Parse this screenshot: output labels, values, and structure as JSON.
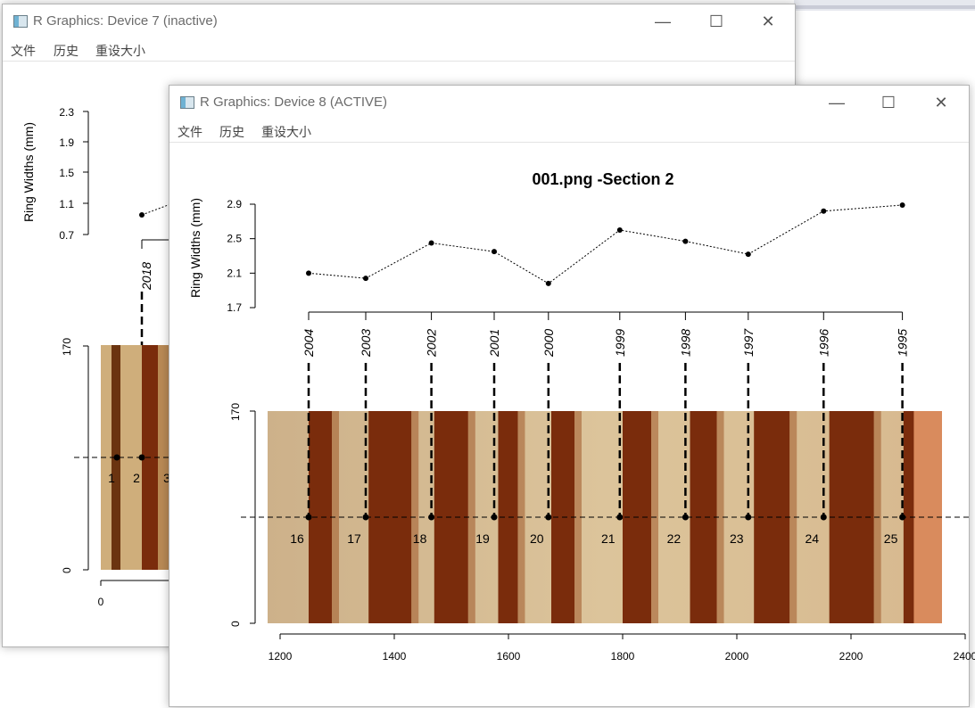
{
  "window_inactive": {
    "title": "R Graphics: Device 7 (inactive)",
    "menu": [
      "文件",
      "历史",
      "重设大小"
    ],
    "y_axis_label": "Ring Widths (mm)",
    "width_ticks": [
      "2.3",
      "1.9",
      "1.5",
      "1.1",
      "0.7"
    ],
    "height_ticks": [
      "170",
      "0"
    ],
    "x_tick": "0",
    "year_label": "2018",
    "ring_numbers": [
      "1",
      "2",
      "3"
    ]
  },
  "window_active": {
    "title": "R Graphics: Device 8 (ACTIVE)",
    "menu": [
      "文件",
      "历史",
      "重设大小"
    ]
  },
  "colors": {
    "wood_light": "#d8bf8e",
    "wood_dark": "#7a2c0c",
    "wood_edge": "#d98b5d"
  },
  "chart_data": {
    "type": "line",
    "title": "001.png -Section 2",
    "ylabel": "Ring Widths (mm)",
    "ylim": [
      1.7,
      2.9
    ],
    "yticks": [
      "2.9",
      "2.5",
      "2.1",
      "1.7"
    ],
    "points": [
      {
        "year": "2004",
        "width": 2.1,
        "x": 1250,
        "ring": "16"
      },
      {
        "year": "2003",
        "width": 2.04,
        "x": 1350,
        "ring": "17"
      },
      {
        "year": "2002",
        "width": 2.45,
        "x": 1465,
        "ring": "18"
      },
      {
        "year": "2001",
        "width": 2.35,
        "x": 1575,
        "ring": "19"
      },
      {
        "year": "2000",
        "width": 1.98,
        "x": 1670,
        "ring": "20"
      },
      {
        "year": "1999",
        "width": 2.6,
        "x": 1795,
        "ring": "21"
      },
      {
        "year": "1998",
        "width": 2.47,
        "x": 1910,
        "ring": "22"
      },
      {
        "year": "1997",
        "width": 2.32,
        "x": 2020,
        "ring": "23"
      },
      {
        "year": "1996",
        "width": 2.82,
        "x": 2152,
        "ring": "24"
      },
      {
        "year": "1995",
        "width": 2.89,
        "x": 2290,
        "ring": "25"
      }
    ],
    "image_xlim": [
      1200,
      2400
    ],
    "image_ylim": [
      0,
      170
    ],
    "xticks": [
      "1200",
      "1400",
      "1600",
      "1800",
      "2000",
      "2200",
      "2400"
    ],
    "image_yticks": [
      "170",
      "0"
    ]
  }
}
